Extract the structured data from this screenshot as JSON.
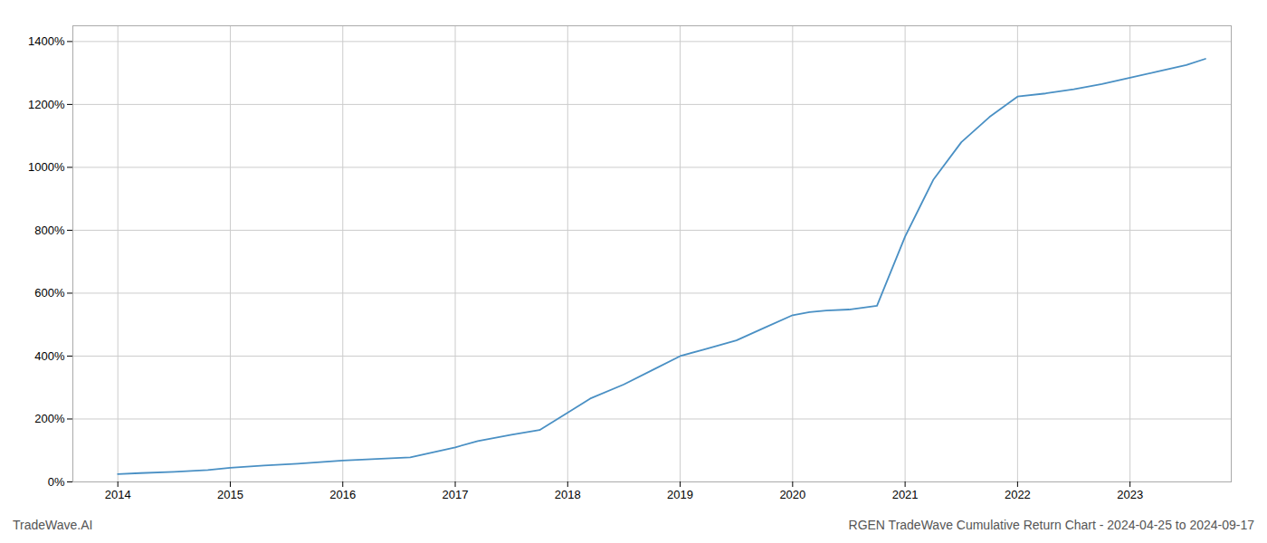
{
  "chart_data": {
    "type": "line",
    "title": "RGEN TradeWave Cumulative Return Chart - 2024-04-25 to 2024-09-17",
    "annotations": [
      "TradeWave.AI"
    ],
    "x": [
      2014.0,
      2014.2,
      2014.5,
      2014.8,
      2015.0,
      2015.3,
      2015.6,
      2016.0,
      2016.3,
      2016.6,
      2017.0,
      2017.2,
      2017.5,
      2017.75,
      2018.0,
      2018.2,
      2018.5,
      2018.75,
      2019.0,
      2019.2,
      2019.5,
      2019.75,
      2020.0,
      2020.15,
      2020.3,
      2020.5,
      2020.75,
      2021.0,
      2021.25,
      2021.5,
      2021.75,
      2022.0,
      2022.25,
      2022.5,
      2022.75,
      2023.0,
      2023.25,
      2023.5,
      2023.67
    ],
    "values": [
      25,
      28,
      32,
      38,
      45,
      52,
      58,
      68,
      73,
      78,
      110,
      130,
      150,
      165,
      220,
      265,
      310,
      355,
      400,
      420,
      450,
      490,
      530,
      540,
      545,
      548,
      560,
      780,
      960,
      1080,
      1160,
      1225,
      1235,
      1248,
      1265,
      1285,
      1305,
      1325,
      1345
    ],
    "color": "#4a90c4",
    "xlim": [
      2013.6,
      2023.9
    ],
    "ylim": [
      0,
      1450
    ],
    "xticks": [
      2014,
      2015,
      2016,
      2017,
      2018,
      2019,
      2020,
      2021,
      2022,
      2023
    ],
    "yticks": [
      {
        "value": 0,
        "label": "0%"
      },
      {
        "value": 200,
        "label": "200%"
      },
      {
        "value": 400,
        "label": "400%"
      },
      {
        "value": 600,
        "label": "600%"
      },
      {
        "value": 800,
        "label": "800%"
      },
      {
        "value": 1000,
        "label": "1000%"
      },
      {
        "value": 1200,
        "label": "1200%"
      },
      {
        "value": 1400,
        "label": "1400%"
      }
    ],
    "grid": true
  }
}
